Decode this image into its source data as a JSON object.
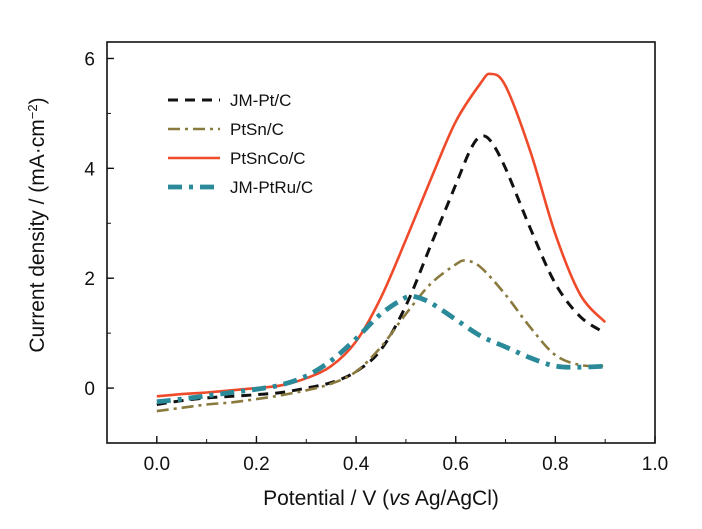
{
  "chart_data": {
    "type": "line",
    "xlabel_parts": [
      "Potential / V (",
      "vs",
      " Ag/AgCl)"
    ],
    "ylabel_parts": [
      "Current density / (mA·cm",
      "−2",
      ")"
    ],
    "xlim": [
      -0.1,
      1.0
    ],
    "ylim": [
      -1.0,
      6.3
    ],
    "xticks": [
      0.0,
      0.2,
      0.4,
      0.6,
      0.8,
      1.0
    ],
    "xtick_labels": [
      "0.0",
      "0.2",
      "0.4",
      "0.6",
      "0.8",
      "1.0"
    ],
    "yticks": [
      0,
      2,
      4,
      6
    ],
    "ytick_labels": [
      "0",
      "2",
      "4",
      "6"
    ],
    "grid": false,
    "legend_position": "top-left",
    "series": [
      {
        "name": "JM-Pt/C",
        "color": "#111111",
        "style": "dash",
        "points": [
          [
            0.0,
            -0.3
          ],
          [
            0.05,
            -0.23
          ],
          [
            0.1,
            -0.18
          ],
          [
            0.15,
            -0.15
          ],
          [
            0.2,
            -0.12
          ],
          [
            0.25,
            -0.08
          ],
          [
            0.3,
            0.0
          ],
          [
            0.35,
            0.1
          ],
          [
            0.4,
            0.3
          ],
          [
            0.45,
            0.7
          ],
          [
            0.5,
            1.5
          ],
          [
            0.55,
            2.6
          ],
          [
            0.6,
            3.7
          ],
          [
            0.63,
            4.35
          ],
          [
            0.65,
            4.58
          ],
          [
            0.67,
            4.5
          ],
          [
            0.7,
            4.0
          ],
          [
            0.75,
            2.9
          ],
          [
            0.8,
            1.9
          ],
          [
            0.85,
            1.3
          ],
          [
            0.9,
            1.0
          ]
        ]
      },
      {
        "name": "PtSn/C",
        "color": "#8a7a3e",
        "style": "dashdot",
        "points": [
          [
            0.0,
            -0.42
          ],
          [
            0.05,
            -0.36
          ],
          [
            0.1,
            -0.3
          ],
          [
            0.15,
            -0.26
          ],
          [
            0.2,
            -0.2
          ],
          [
            0.25,
            -0.13
          ],
          [
            0.3,
            -0.04
          ],
          [
            0.35,
            0.08
          ],
          [
            0.4,
            0.3
          ],
          [
            0.45,
            0.75
          ],
          [
            0.5,
            1.35
          ],
          [
            0.55,
            1.9
          ],
          [
            0.6,
            2.25
          ],
          [
            0.62,
            2.32
          ],
          [
            0.65,
            2.2
          ],
          [
            0.7,
            1.7
          ],
          [
            0.75,
            1.1
          ],
          [
            0.8,
            0.6
          ],
          [
            0.85,
            0.42
          ],
          [
            0.9,
            0.4
          ]
        ]
      },
      {
        "name": "PtSnCo/C",
        "color": "#ef4a2a",
        "style": "solid",
        "points": [
          [
            0.0,
            -0.15
          ],
          [
            0.05,
            -0.11
          ],
          [
            0.1,
            -0.08
          ],
          [
            0.15,
            -0.04
          ],
          [
            0.2,
            0.0
          ],
          [
            0.25,
            0.05
          ],
          [
            0.3,
            0.18
          ],
          [
            0.35,
            0.4
          ],
          [
            0.4,
            0.85
          ],
          [
            0.45,
            1.65
          ],
          [
            0.5,
            2.7
          ],
          [
            0.55,
            3.8
          ],
          [
            0.6,
            4.85
          ],
          [
            0.65,
            5.55
          ],
          [
            0.67,
            5.72
          ],
          [
            0.7,
            5.5
          ],
          [
            0.75,
            4.3
          ],
          [
            0.8,
            2.8
          ],
          [
            0.85,
            1.7
          ],
          [
            0.9,
            1.2
          ]
        ]
      },
      {
        "name": "JM-PtRu/C",
        "color": "#2a8a9a",
        "style": "dashdot-thick",
        "points": [
          [
            0.0,
            -0.25
          ],
          [
            0.05,
            -0.2
          ],
          [
            0.1,
            -0.14
          ],
          [
            0.15,
            -0.08
          ],
          [
            0.2,
            -0.02
          ],
          [
            0.25,
            0.06
          ],
          [
            0.3,
            0.22
          ],
          [
            0.35,
            0.5
          ],
          [
            0.4,
            0.9
          ],
          [
            0.45,
            1.35
          ],
          [
            0.5,
            1.65
          ],
          [
            0.52,
            1.66
          ],
          [
            0.55,
            1.55
          ],
          [
            0.6,
            1.25
          ],
          [
            0.65,
            0.95
          ],
          [
            0.7,
            0.75
          ],
          [
            0.75,
            0.55
          ],
          [
            0.8,
            0.4
          ],
          [
            0.85,
            0.38
          ],
          [
            0.9,
            0.4
          ]
        ]
      }
    ]
  }
}
